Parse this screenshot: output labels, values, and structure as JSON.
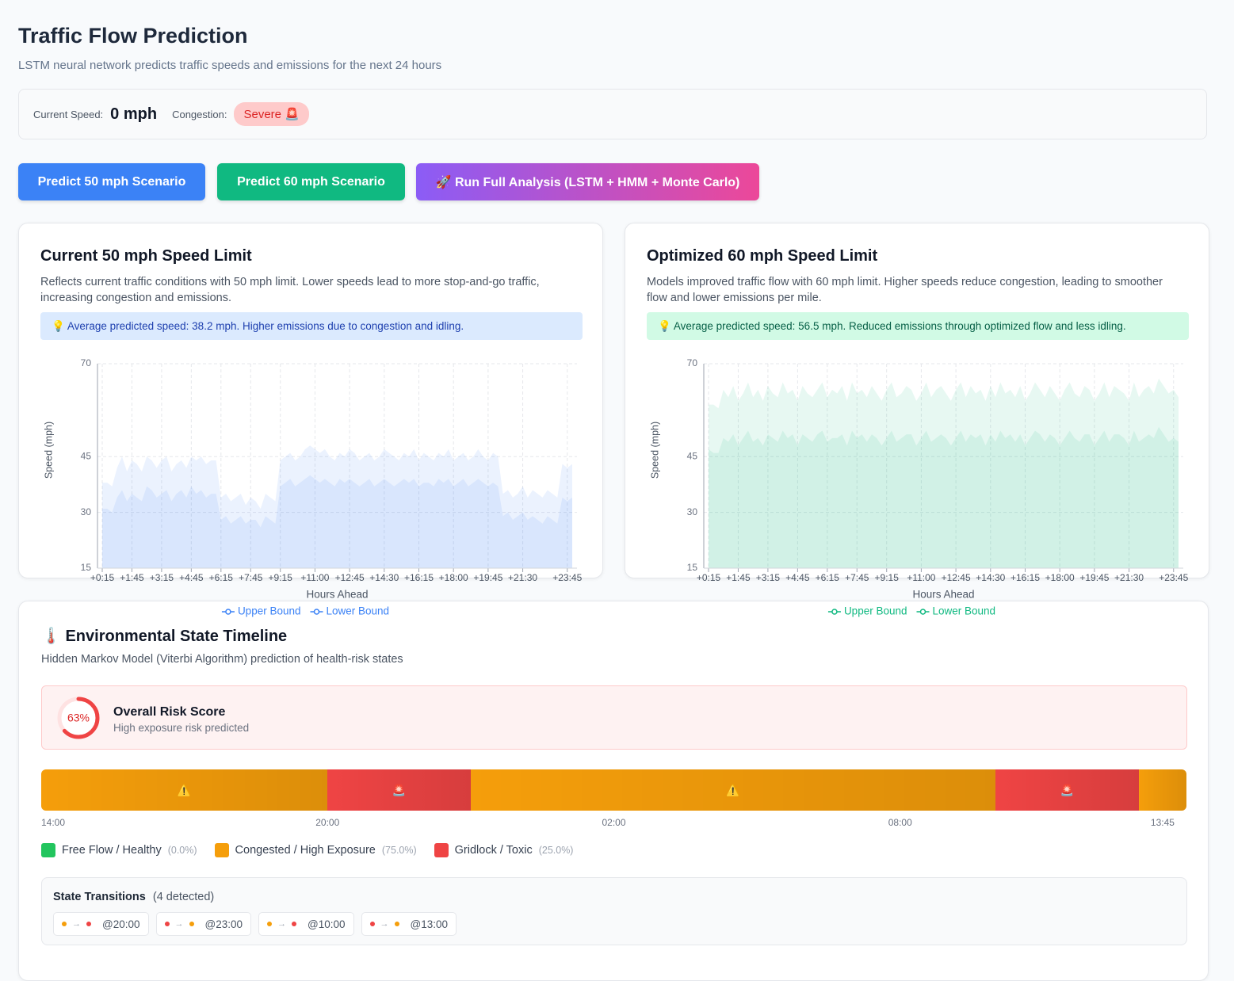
{
  "header": {
    "title": "Traffic Flow Prediction",
    "subtitle": "LSTM neural network predicts traffic speeds and emissions for the next 24 hours"
  },
  "status": {
    "speed_label": "Current Speed:",
    "speed": "0 mph",
    "congestion_label": "Congestion:",
    "congestion": "Severe 🚨"
  },
  "buttons": [
    "Predict 50 mph Scenario",
    "Predict 60 mph Scenario",
    "🚀 Run Full Analysis (LSTM + HMM + Monte Carlo)"
  ],
  "chart_data": [
    {
      "type": "area",
      "title": "Current 50 mph Speed Limit",
      "description": "Reflects current traffic conditions with 50 mph limit. Lower speeds lead to more stop-and-go traffic, increasing congestion and emissions.",
      "note": "💡 Average predicted speed: 38.2 mph. Higher emissions due to congestion and idling.",
      "x_label": "Hours Ahead",
      "y_label": "Speed (mph)",
      "categories": [
        "+0:15",
        null,
        null,
        null,
        null,
        null,
        "+1:45",
        null,
        null,
        null,
        null,
        null,
        "+3:15",
        null,
        null,
        null,
        null,
        null,
        "+4:45",
        null,
        null,
        null,
        null,
        null,
        "+6:15",
        null,
        null,
        null,
        null,
        null,
        "+7:45",
        null,
        null,
        null,
        null,
        null,
        "+9:15",
        null,
        null,
        null,
        null,
        null,
        null,
        "+11:00",
        null,
        null,
        null,
        null,
        null,
        null,
        "+12:45",
        null,
        null,
        null,
        null,
        null,
        null,
        "+14:30",
        null,
        null,
        null,
        null,
        null,
        null,
        "+16:15",
        null,
        null,
        null,
        null,
        null,
        null,
        "+18:00",
        null,
        null,
        null,
        null,
        null,
        null,
        "+19:45",
        null,
        null,
        null,
        null,
        null,
        null,
        "+21:30",
        null,
        null,
        null,
        null,
        null,
        null,
        null,
        null,
        "+23:45",
        null
      ],
      "series": [
        {
          "name": "Upper Bound",
          "color": "#3b82f6",
          "values": [
            38,
            38,
            37,
            42,
            45,
            41,
            44,
            43,
            41,
            45,
            44,
            42,
            44,
            45,
            41,
            43,
            44,
            42,
            45,
            44,
            45,
            43,
            44,
            44,
            34,
            35,
            33,
            34,
            35,
            32,
            34,
            33,
            31,
            35,
            34,
            33,
            44,
            45,
            46,
            44,
            45,
            47,
            48,
            47,
            46,
            47,
            45,
            44,
            46,
            45,
            47,
            46,
            44,
            45,
            46,
            44,
            45,
            47,
            46,
            45,
            44,
            46,
            45,
            47,
            44,
            46,
            45,
            44,
            46,
            45,
            47,
            44,
            45,
            46,
            44,
            45,
            47,
            45,
            44,
            46,
            45,
            35,
            36,
            34,
            35,
            37,
            34,
            36,
            35,
            34,
            36,
            35,
            34,
            43,
            42,
            43
          ]
        },
        {
          "name": "Lower Bound",
          "color": "#3b82f6",
          "values": [
            31,
            31,
            30,
            34,
            36,
            33,
            35,
            34,
            33,
            37,
            36,
            34,
            35,
            36,
            33,
            35,
            36,
            34,
            37,
            35,
            36,
            34,
            35,
            35,
            28,
            29,
            27,
            28,
            29,
            27,
            28,
            28,
            26,
            29,
            28,
            27,
            37,
            38,
            39,
            37,
            38,
            39,
            40,
            39,
            38,
            39,
            38,
            37,
            39,
            38,
            39,
            38,
            37,
            38,
            39,
            37,
            38,
            39,
            38,
            37,
            38,
            39,
            38,
            39,
            37,
            38,
            38,
            37,
            39,
            38,
            39,
            37,
            38,
            39,
            37,
            38,
            39,
            38,
            37,
            38,
            37,
            29,
            30,
            28,
            29,
            30,
            28,
            29,
            28,
            27,
            29,
            28,
            27,
            34,
            33,
            34
          ]
        }
      ],
      "ylim": [
        15,
        70
      ],
      "yticks": [
        15,
        30,
        45,
        70
      ],
      "grid": true,
      "legend": "bottom"
    },
    {
      "type": "area",
      "title": "Optimized 60 mph Speed Limit",
      "description": "Models improved traffic flow with 60 mph limit. Higher speeds reduce congestion, leading to smoother flow and lower emissions per mile.",
      "note": "💡 Average predicted speed: 56.5 mph. Reduced emissions through optimized flow and less idling.",
      "x_label": "Hours Ahead",
      "y_label": "Speed (mph)",
      "categories": [
        "+0:15",
        null,
        null,
        null,
        null,
        null,
        "+1:45",
        null,
        null,
        null,
        null,
        null,
        "+3:15",
        null,
        null,
        null,
        null,
        null,
        "+4:45",
        null,
        null,
        null,
        null,
        null,
        "+6:15",
        null,
        null,
        null,
        null,
        null,
        "+7:45",
        null,
        null,
        null,
        null,
        null,
        "+9:15",
        null,
        null,
        null,
        null,
        null,
        null,
        "+11:00",
        null,
        null,
        null,
        null,
        null,
        null,
        "+12:45",
        null,
        null,
        null,
        null,
        null,
        null,
        "+14:30",
        null,
        null,
        null,
        null,
        null,
        null,
        "+16:15",
        null,
        null,
        null,
        null,
        null,
        null,
        "+18:00",
        null,
        null,
        null,
        null,
        null,
        null,
        "+19:45",
        null,
        null,
        null,
        null,
        null,
        null,
        "+21:30",
        null,
        null,
        null,
        null,
        null,
        null,
        null,
        null,
        "+23:45",
        null
      ],
      "series": [
        {
          "name": "Upper Bound",
          "color": "#10b981",
          "values": [
            59,
            59,
            58,
            63,
            61,
            64,
            60,
            62,
            65,
            61,
            63,
            60,
            64,
            62,
            61,
            65,
            62,
            63,
            60,
            64,
            62,
            61,
            63,
            65,
            61,
            63,
            62,
            64,
            60,
            65,
            62,
            63,
            61,
            64,
            62,
            60,
            63,
            65,
            61,
            62,
            64,
            63,
            60,
            62,
            65,
            61,
            63,
            64,
            62,
            60,
            63,
            65,
            61,
            64,
            62,
            63,
            60,
            64,
            61,
            65,
            62,
            63,
            61,
            64,
            60,
            62,
            65,
            63,
            61,
            64,
            62,
            60,
            63,
            65,
            62,
            61,
            64,
            63,
            60,
            62,
            65,
            61,
            64,
            63,
            62,
            60,
            65,
            61,
            63,
            64,
            62,
            66,
            64,
            62,
            63,
            61
          ]
        },
        {
          "name": "Lower Bound",
          "color": "#10b981",
          "values": [
            47,
            46,
            46,
            50,
            49,
            51,
            48,
            50,
            52,
            49,
            50,
            48,
            51,
            50,
            49,
            52,
            50,
            51,
            48,
            51,
            50,
            49,
            51,
            52,
            49,
            50,
            50,
            51,
            48,
            52,
            50,
            51,
            49,
            51,
            50,
            48,
            50,
            52,
            49,
            50,
            51,
            51,
            48,
            50,
            52,
            49,
            50,
            51,
            50,
            48,
            50,
            52,
            49,
            51,
            50,
            51,
            48,
            51,
            49,
            52,
            50,
            51,
            49,
            51,
            48,
            50,
            52,
            51,
            49,
            51,
            50,
            48,
            50,
            52,
            50,
            49,
            51,
            51,
            48,
            50,
            52,
            49,
            51,
            51,
            50,
            48,
            52,
            49,
            50,
            51,
            50,
            53,
            51,
            49,
            50,
            49
          ]
        }
      ],
      "ylim": [
        15,
        70
      ],
      "yticks": [
        15,
        30,
        45,
        70
      ],
      "grid": true,
      "legend": "bottom"
    }
  ],
  "hmm": {
    "icon": "🌡️",
    "title": "Environmental State Timeline",
    "subtitle": "Hidden Markov Model (Viterbi Algorithm) prediction of health-risk states",
    "risk": {
      "value": 63,
      "label": "63%",
      "lim": [
        0,
        100
      ],
      "color": "#ef4444",
      "title": "Overall Risk Score",
      "subtitle": "High exposure risk predicted"
    },
    "timeline": {
      "xlim": [
        0,
        24
      ],
      "segments": [
        {
          "hours": 6,
          "color": "#f59e0b",
          "icon": "⚠️"
        },
        {
          "hours": 3,
          "color": "#ef4444",
          "icon": "🚨"
        },
        {
          "hours": 11,
          "color": "#f59e0b",
          "icon": "⚠️"
        },
        {
          "hours": 3,
          "color": "#ef4444",
          "icon": "🚨"
        },
        {
          "hours": 1,
          "color": "#f59e0b",
          "icon": null
        }
      ],
      "xticks": [
        {
          "value": 0,
          "label": "14:00"
        },
        {
          "value": 6,
          "label": "20:00"
        },
        {
          "value": 12,
          "label": "02:00"
        },
        {
          "value": 18,
          "label": "08:00"
        },
        {
          "value": 23.75,
          "label": "13:45"
        }
      ]
    },
    "legend": [
      {
        "name": "Free Flow / Healthy",
        "color": "#22c55e",
        "share": "(0.0%)"
      },
      {
        "name": "Congested / High Exposure",
        "color": "#f59e0b",
        "share": "(75.0%)"
      },
      {
        "name": "Gridlock / Toxic",
        "color": "#ef4444",
        "share": "(25.0%)"
      }
    ],
    "transitions": {
      "title": "State Transitions",
      "count": "(4 detected)",
      "arrow": "→",
      "items": [
        {
          "from": "#f59e0b",
          "to": "#ef4444",
          "time": "@20:00"
        },
        {
          "from": "#ef4444",
          "to": "#f59e0b",
          "time": "@23:00"
        },
        {
          "from": "#f59e0b",
          "to": "#ef4444",
          "time": "@10:00"
        },
        {
          "from": "#ef4444",
          "to": "#f59e0b",
          "time": "@13:00"
        }
      ]
    }
  }
}
